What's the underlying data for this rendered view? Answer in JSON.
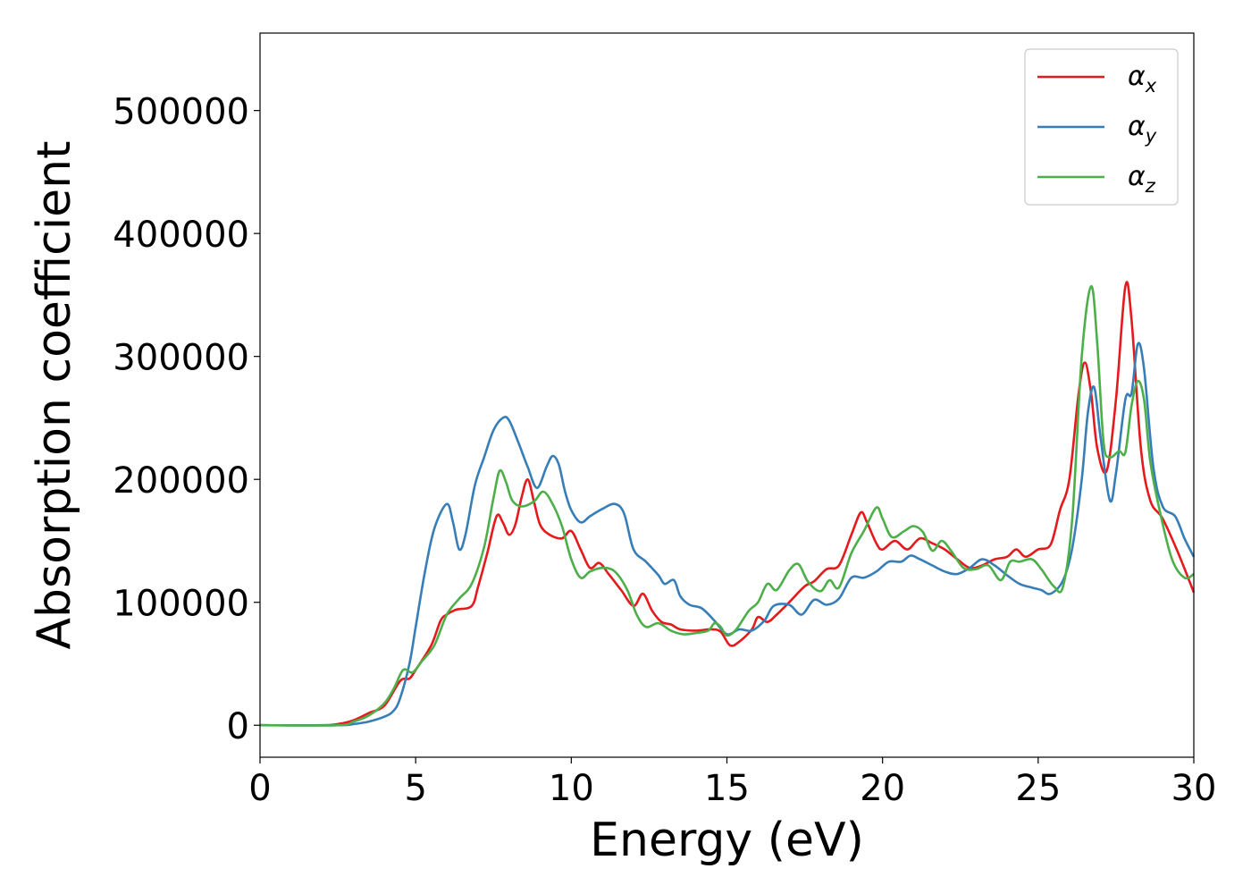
{
  "chart_data": {
    "type": "line",
    "title": "",
    "xlabel": "Energy (eV)",
    "ylabel": "Absorption coefficient",
    "xlim": [
      0,
      30
    ],
    "ylim": [
      -26000,
      563000
    ],
    "xticks": [
      0,
      5,
      10,
      15,
      20,
      25,
      30
    ],
    "yticks": [
      0,
      100000,
      200000,
      300000,
      400000,
      500000
    ],
    "grid": false,
    "legend_position": "top-right",
    "series": [
      {
        "name": "α_x",
        "label_base": "α",
        "label_sub": "x",
        "color": "#e41a1c",
        "points": [
          [
            0,
            0
          ],
          [
            2,
            0
          ],
          [
            2.5,
            1000
          ],
          [
            3,
            4000
          ],
          [
            3.5,
            10000
          ],
          [
            4,
            16000
          ],
          [
            4.5,
            36000
          ],
          [
            4.8,
            38000
          ],
          [
            5,
            45000
          ],
          [
            5.5,
            65000
          ],
          [
            5.8,
            85000
          ],
          [
            6,
            90000
          ],
          [
            6.3,
            94000
          ],
          [
            6.8,
            97000
          ],
          [
            7,
            112000
          ],
          [
            7.3,
            140000
          ],
          [
            7.6,
            170000
          ],
          [
            7.8,
            165000
          ],
          [
            8,
            155000
          ],
          [
            8.2,
            163000
          ],
          [
            8.4,
            185000
          ],
          [
            8.6,
            200000
          ],
          [
            8.8,
            182000
          ],
          [
            9,
            163000
          ],
          [
            9.3,
            155000
          ],
          [
            9.7,
            152000
          ],
          [
            10,
            158000
          ],
          [
            10.3,
            143000
          ],
          [
            10.6,
            128000
          ],
          [
            10.9,
            132000
          ],
          [
            11.2,
            123000
          ],
          [
            11.6,
            110000
          ],
          [
            12,
            97000
          ],
          [
            12.3,
            107000
          ],
          [
            12.6,
            93000
          ],
          [
            12.9,
            84000
          ],
          [
            13.2,
            82000
          ],
          [
            13.5,
            78000
          ],
          [
            14,
            77000
          ],
          [
            14.5,
            78000
          ],
          [
            14.8,
            76000
          ],
          [
            15.1,
            65000
          ],
          [
            15.4,
            68000
          ],
          [
            15.8,
            78000
          ],
          [
            16,
            88000
          ],
          [
            16.3,
            84000
          ],
          [
            16.6,
            90000
          ],
          [
            17,
            100000
          ],
          [
            17.5,
            113000
          ],
          [
            17.8,
            117000
          ],
          [
            18.2,
            127000
          ],
          [
            18.6,
            130000
          ],
          [
            19,
            155000
          ],
          [
            19.3,
            173000
          ],
          [
            19.5,
            165000
          ],
          [
            19.8,
            148000
          ],
          [
            20,
            143000
          ],
          [
            20.4,
            150000
          ],
          [
            20.8,
            143000
          ],
          [
            21.2,
            152000
          ],
          [
            21.6,
            148000
          ],
          [
            22,
            143000
          ],
          [
            22.4,
            135000
          ],
          [
            22.8,
            128000
          ],
          [
            23.2,
            130000
          ],
          [
            23.6,
            135000
          ],
          [
            24,
            137000
          ],
          [
            24.3,
            143000
          ],
          [
            24.6,
            137000
          ],
          [
            25,
            143000
          ],
          [
            25.4,
            147000
          ],
          [
            25.7,
            175000
          ],
          [
            26,
            200000
          ],
          [
            26.3,
            270000
          ],
          [
            26.5,
            295000
          ],
          [
            26.7,
            270000
          ],
          [
            26.9,
            225000
          ],
          [
            27.2,
            207000
          ],
          [
            27.5,
            265000
          ],
          [
            27.8,
            357000
          ],
          [
            28,
            330000
          ],
          [
            28.3,
            225000
          ],
          [
            28.6,
            183000
          ],
          [
            29,
            168000
          ],
          [
            29.5,
            140000
          ],
          [
            30,
            108000
          ]
        ]
      },
      {
        "name": "α_y",
        "label_base": "α",
        "label_sub": "y",
        "color": "#377eb8",
        "points": [
          [
            0,
            0
          ],
          [
            2.5,
            0
          ],
          [
            3,
            1000
          ],
          [
            3.5,
            3000
          ],
          [
            4,
            7000
          ],
          [
            4.3,
            12000
          ],
          [
            4.5,
            22000
          ],
          [
            4.8,
            50000
          ],
          [
            5,
            80000
          ],
          [
            5.3,
            125000
          ],
          [
            5.6,
            160000
          ],
          [
            6,
            180000
          ],
          [
            6.2,
            165000
          ],
          [
            6.4,
            143000
          ],
          [
            6.6,
            155000
          ],
          [
            6.9,
            195000
          ],
          [
            7.2,
            218000
          ],
          [
            7.5,
            240000
          ],
          [
            7.8,
            250000
          ],
          [
            8,
            248000
          ],
          [
            8.3,
            230000
          ],
          [
            8.6,
            210000
          ],
          [
            8.9,
            193000
          ],
          [
            9.2,
            210000
          ],
          [
            9.4,
            219000
          ],
          [
            9.6,
            212000
          ],
          [
            9.8,
            190000
          ],
          [
            10,
            175000
          ],
          [
            10.3,
            165000
          ],
          [
            10.6,
            170000
          ],
          [
            11,
            176000
          ],
          [
            11.4,
            180000
          ],
          [
            11.7,
            172000
          ],
          [
            12,
            143000
          ],
          [
            12.4,
            133000
          ],
          [
            12.8,
            122000
          ],
          [
            13,
            115000
          ],
          [
            13.3,
            118000
          ],
          [
            13.5,
            105000
          ],
          [
            13.8,
            98000
          ],
          [
            14.2,
            95000
          ],
          [
            14.6,
            85000
          ],
          [
            15,
            74000
          ],
          [
            15.4,
            78000
          ],
          [
            15.8,
            77000
          ],
          [
            16.2,
            85000
          ],
          [
            16.5,
            97000
          ],
          [
            17,
            98000
          ],
          [
            17.4,
            90000
          ],
          [
            17.8,
            102000
          ],
          [
            18.2,
            98000
          ],
          [
            18.6,
            103000
          ],
          [
            19,
            120000
          ],
          [
            19.4,
            120000
          ],
          [
            19.8,
            125000
          ],
          [
            20.2,
            133000
          ],
          [
            20.6,
            133000
          ],
          [
            20.9,
            138000
          ],
          [
            21.2,
            135000
          ],
          [
            21.6,
            130000
          ],
          [
            22,
            125000
          ],
          [
            22.4,
            123000
          ],
          [
            22.8,
            128000
          ],
          [
            23.2,
            135000
          ],
          [
            23.6,
            130000
          ],
          [
            24,
            122000
          ],
          [
            24.4,
            115000
          ],
          [
            24.8,
            112000
          ],
          [
            25.1,
            110000
          ],
          [
            25.4,
            107000
          ],
          [
            25.8,
            118000
          ],
          [
            26.1,
            145000
          ],
          [
            26.4,
            200000
          ],
          [
            26.6,
            255000
          ],
          [
            26.8,
            275000
          ],
          [
            27,
            235000
          ],
          [
            27.3,
            183000
          ],
          [
            27.5,
            205000
          ],
          [
            27.8,
            265000
          ],
          [
            28,
            270000
          ],
          [
            28.2,
            310000
          ],
          [
            28.4,
            290000
          ],
          [
            28.7,
            210000
          ],
          [
            29,
            178000
          ],
          [
            29.4,
            170000
          ],
          [
            29.7,
            152000
          ],
          [
            30,
            137000
          ]
        ]
      },
      {
        "name": "α_z",
        "label_base": "α",
        "label_sub": "z",
        "color": "#4daf4a",
        "points": [
          [
            0,
            0
          ],
          [
            2.5,
            0
          ],
          [
            3,
            3000
          ],
          [
            3.5,
            8000
          ],
          [
            4,
            18000
          ],
          [
            4.3,
            30000
          ],
          [
            4.6,
            45000
          ],
          [
            4.9,
            43000
          ],
          [
            5.2,
            52000
          ],
          [
            5.6,
            65000
          ],
          [
            6,
            90000
          ],
          [
            6.4,
            103000
          ],
          [
            6.8,
            115000
          ],
          [
            7.2,
            145000
          ],
          [
            7.5,
            185000
          ],
          [
            7.7,
            207000
          ],
          [
            7.9,
            198000
          ],
          [
            8.1,
            183000
          ],
          [
            8.4,
            178000
          ],
          [
            8.8,
            182000
          ],
          [
            9.1,
            190000
          ],
          [
            9.4,
            180000
          ],
          [
            9.7,
            162000
          ],
          [
            10,
            135000
          ],
          [
            10.3,
            120000
          ],
          [
            10.6,
            125000
          ],
          [
            11,
            128000
          ],
          [
            11.4,
            125000
          ],
          [
            11.8,
            110000
          ],
          [
            12.1,
            90000
          ],
          [
            12.4,
            80000
          ],
          [
            12.8,
            83000
          ],
          [
            13.2,
            77000
          ],
          [
            13.6,
            74000
          ],
          [
            14,
            75000
          ],
          [
            14.4,
            77000
          ],
          [
            14.6,
            83000
          ],
          [
            14.8,
            80000
          ],
          [
            15,
            73000
          ],
          [
            15.3,
            78000
          ],
          [
            15.7,
            93000
          ],
          [
            16,
            100000
          ],
          [
            16.3,
            115000
          ],
          [
            16.6,
            110000
          ],
          [
            17,
            126000
          ],
          [
            17.3,
            131000
          ],
          [
            17.6,
            117000
          ],
          [
            18,
            109000
          ],
          [
            18.3,
            118000
          ],
          [
            18.6,
            112000
          ],
          [
            19,
            140000
          ],
          [
            19.4,
            158000
          ],
          [
            19.8,
            177000
          ],
          [
            20,
            168000
          ],
          [
            20.3,
            153000
          ],
          [
            20.7,
            158000
          ],
          [
            21,
            162000
          ],
          [
            21.3,
            157000
          ],
          [
            21.6,
            142000
          ],
          [
            21.9,
            150000
          ],
          [
            22.2,
            142000
          ],
          [
            22.6,
            128000
          ],
          [
            23,
            127000
          ],
          [
            23.4,
            130000
          ],
          [
            23.8,
            118000
          ],
          [
            24.1,
            133000
          ],
          [
            24.4,
            133000
          ],
          [
            24.8,
            135000
          ],
          [
            25.1,
            127000
          ],
          [
            25.5,
            113000
          ],
          [
            25.8,
            113000
          ],
          [
            26.1,
            170000
          ],
          [
            26.4,
            300000
          ],
          [
            26.7,
            357000
          ],
          [
            26.9,
            310000
          ],
          [
            27.1,
            230000
          ],
          [
            27.3,
            218000
          ],
          [
            27.6,
            223000
          ],
          [
            27.8,
            222000
          ],
          [
            28,
            260000
          ],
          [
            28.2,
            280000
          ],
          [
            28.4,
            265000
          ],
          [
            28.6,
            215000
          ],
          [
            28.9,
            175000
          ],
          [
            29.3,
            135000
          ],
          [
            29.7,
            120000
          ],
          [
            30,
            123000
          ]
        ]
      }
    ]
  }
}
